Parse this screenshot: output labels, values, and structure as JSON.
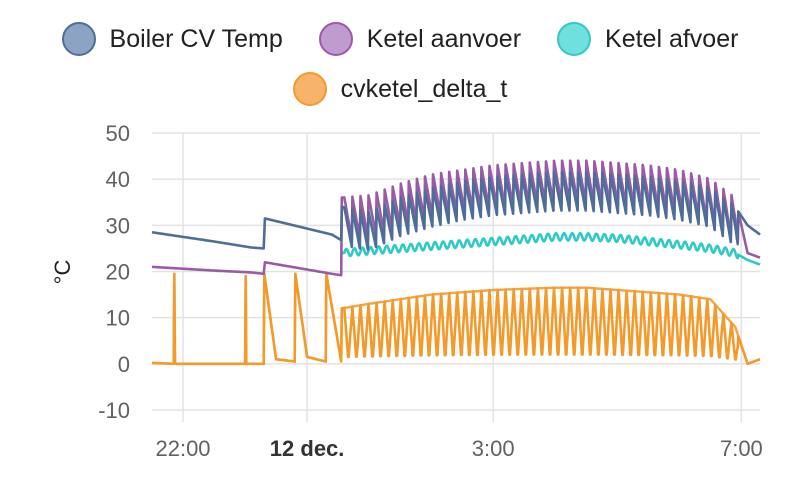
{
  "chart_data": {
    "type": "line",
    "ylabel": "°C",
    "ylim": [
      -10,
      50
    ],
    "yticks": [
      50,
      40,
      30,
      20,
      10,
      0,
      -10
    ],
    "xlim": [
      21.5,
      31.3
    ],
    "xticks": [
      {
        "value": 22,
        "label": "22:00",
        "bold": false
      },
      {
        "value": 24,
        "label": "12 dec.",
        "bold": true
      },
      {
        "value": 27,
        "label": "3:00",
        "bold": false
      },
      {
        "value": 31,
        "label": "7:00",
        "bold": false
      }
    ],
    "legend_position": "top-center",
    "grid": true,
    "series": [
      {
        "name": "Boiler CV Temp",
        "color": "#4e6d99",
        "fill": "#8ca3c4",
        "points": [
          [
            21.5,
            28.5
          ],
          [
            22.5,
            26.5
          ],
          [
            23.1,
            25.2
          ],
          [
            23.3,
            25.0
          ],
          [
            23.32,
            31.5
          ],
          [
            24.4,
            28.0
          ],
          [
            24.55,
            26.8
          ],
          [
            24.56,
            34.0
          ],
          [
            25.0,
            33.0
          ],
          [
            25.5,
            36.0
          ],
          [
            26.0,
            38.0
          ],
          [
            26.5,
            39.5
          ],
          [
            27.0,
            40.5
          ],
          [
            27.5,
            41.0
          ],
          [
            28.0,
            41.5
          ],
          [
            28.5,
            41.5
          ],
          [
            29.0,
            41.0
          ],
          [
            29.5,
            40.5
          ],
          [
            30.0,
            39.5
          ],
          [
            30.5,
            38.0
          ],
          [
            30.9,
            34.0
          ],
          [
            31.1,
            30.0
          ],
          [
            31.3,
            28.0
          ]
        ]
      },
      {
        "name": "Ketel aanvoer",
        "color": "#9a5aa6",
        "fill": "#c09bd0",
        "points": [
          [
            21.5,
            21.0
          ],
          [
            22.5,
            20.2
          ],
          [
            23.1,
            19.8
          ],
          [
            23.3,
            19.5
          ],
          [
            23.32,
            22.0
          ],
          [
            24.4,
            19.5
          ],
          [
            24.55,
            19.2
          ],
          [
            24.56,
            36.0
          ],
          [
            25.0,
            36.5
          ],
          [
            25.5,
            39.0
          ],
          [
            26.0,
            41.0
          ],
          [
            26.5,
            42.0
          ],
          [
            27.0,
            43.0
          ],
          [
            27.5,
            43.5
          ],
          [
            28.0,
            44.0
          ],
          [
            28.5,
            44.0
          ],
          [
            29.0,
            43.5
          ],
          [
            29.5,
            43.0
          ],
          [
            30.0,
            42.0
          ],
          [
            30.5,
            40.0
          ],
          [
            30.9,
            36.0
          ],
          [
            31.1,
            24.0
          ],
          [
            31.3,
            23.0
          ]
        ]
      },
      {
        "name": "Ketel afvoer",
        "color": "#2fc9c7",
        "fill": "#6fe0dc",
        "points": [
          [
            24.56,
            24.0
          ],
          [
            25.0,
            24.5
          ],
          [
            25.5,
            25.0
          ],
          [
            26.0,
            25.5
          ],
          [
            26.5,
            26.0
          ],
          [
            27.0,
            26.5
          ],
          [
            27.5,
            27.0
          ],
          [
            28.0,
            27.5
          ],
          [
            28.5,
            27.5
          ],
          [
            29.0,
            27.2
          ],
          [
            29.5,
            26.5
          ],
          [
            30.0,
            25.8
          ],
          [
            30.5,
            25.0
          ],
          [
            30.9,
            24.0
          ],
          [
            31.1,
            22.5
          ],
          [
            31.3,
            21.5
          ]
        ]
      },
      {
        "name": "cvketel_delta_t",
        "color": "#f39a2b",
        "fill": "#f7b36a",
        "points": [
          [
            21.5,
            0.2
          ],
          [
            21.85,
            0.0
          ],
          [
            21.86,
            19.5
          ],
          [
            21.87,
            0.0
          ],
          [
            23.0,
            0.0
          ],
          [
            23.01,
            19.0
          ],
          [
            23.02,
            0.0
          ],
          [
            23.3,
            0.0
          ],
          [
            23.31,
            19.5
          ],
          [
            23.5,
            1.0
          ],
          [
            23.8,
            0.5
          ],
          [
            23.81,
            19.5
          ],
          [
            24.0,
            1.5
          ],
          [
            24.3,
            0.5
          ],
          [
            24.31,
            19.5
          ],
          [
            24.55,
            0.5
          ],
          [
            24.56,
            12.0
          ],
          [
            25.0,
            13.0
          ],
          [
            26.0,
            15.0
          ],
          [
            27.0,
            16.0
          ],
          [
            28.0,
            16.5
          ],
          [
            28.5,
            16.5
          ],
          [
            29.0,
            16.0
          ],
          [
            30.0,
            15.0
          ],
          [
            30.5,
            14.0
          ],
          [
            30.9,
            8.0
          ],
          [
            31.1,
            0.0
          ],
          [
            31.3,
            1.0
          ]
        ]
      }
    ]
  }
}
